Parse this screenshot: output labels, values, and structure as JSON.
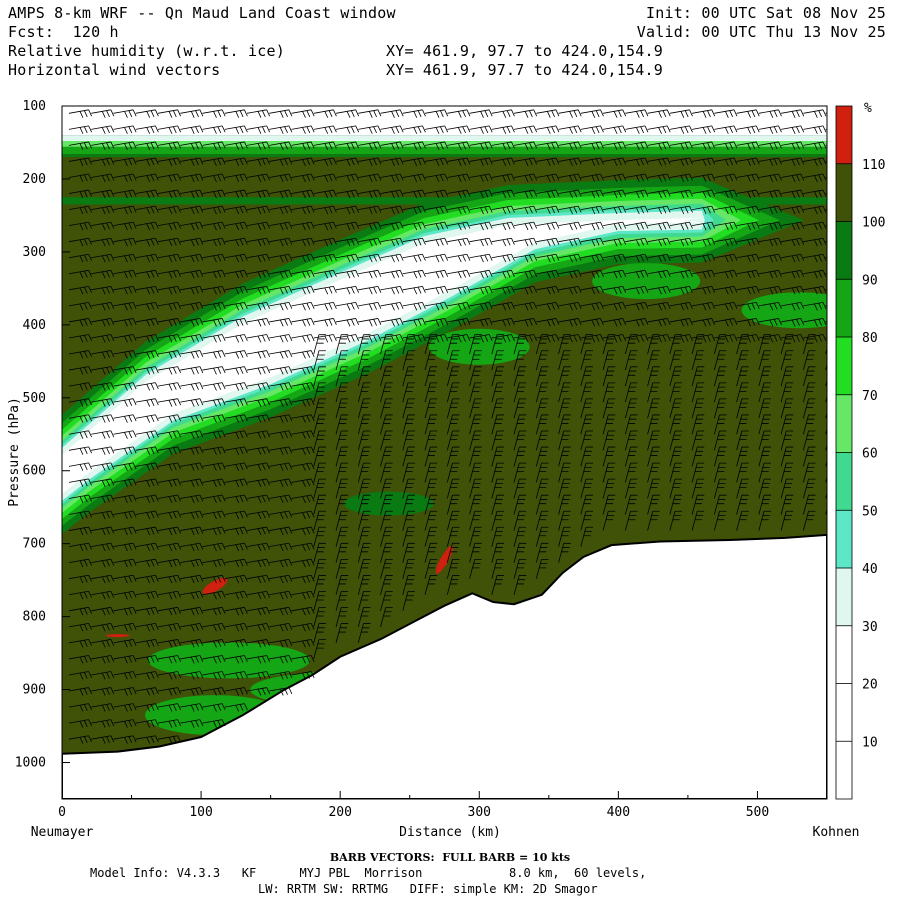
{
  "header": {
    "title": "AMPS 8-km WRF -- Qn Maud Land Coast window",
    "init": "Init: 00 UTC Sat 08 Nov 25",
    "fcst": "Fcst:  120 h",
    "valid": "Valid: 00 UTC Thu 13 Nov 25",
    "field1": "Relative humidity (w.r.t. ice)",
    "field1_xy": "XY= 461.9, 97.7 to 424.0,154.9",
    "field2": "Horizontal wind vectors",
    "field2_xy": "XY= 461.9, 97.7 to 424.0,154.9"
  },
  "footer": {
    "barb_note": "BARB VECTORS:  FULL BARB = 10 kts",
    "model_line1": "Model Info: V4.3.3   KF      MYJ PBL  Morrison            8.0 km,  60 levels,",
    "model_line2": "LW: RRTM SW: RRTMG   DIFF: simple KM: 2D Smagor"
  },
  "chart_data": {
    "type": "heatmap",
    "xlabel": "Distance (km)",
    "ylabel": "Pressure (hPa)",
    "x_ticks": [
      0,
      100,
      200,
      300,
      400,
      500
    ],
    "y_ticks": [
      100,
      200,
      300,
      400,
      500,
      600,
      700,
      800,
      900,
      1000
    ],
    "xlim": [
      0,
      550
    ],
    "ylim": [
      100,
      1050
    ],
    "y_inverted": true,
    "left_endpoint_label": "Neumayer",
    "right_endpoint_label": "Kohnen",
    "colorbar": {
      "unit": "%",
      "ticks": [
        10,
        20,
        30,
        40,
        50,
        60,
        70,
        80,
        90,
        100,
        110
      ],
      "bins": [
        {
          "from": 0,
          "to": 30,
          "color": "#ffffff"
        },
        {
          "from": 30,
          "to": 40,
          "color": "#dff7ef"
        },
        {
          "from": 40,
          "to": 50,
          "color": "#5ee7c7"
        },
        {
          "from": 50,
          "to": 60,
          "color": "#3fd98f"
        },
        {
          "from": 60,
          "to": 70,
          "color": "#66e866"
        },
        {
          "from": 70,
          "to": 80,
          "color": "#22dd22"
        },
        {
          "from": 80,
          "to": 90,
          "color": "#14a614"
        },
        {
          "from": 90,
          "to": 100,
          "color": "#0a7a12"
        },
        {
          "from": 100,
          "to": 110,
          "color": "#3f5208"
        },
        {
          "from": 110,
          "to": 120,
          "color": "#d02010"
        }
      ]
    },
    "terrain_surface": [
      {
        "x": 0,
        "p": 988
      },
      {
        "x": 40,
        "p": 985
      },
      {
        "x": 70,
        "p": 978
      },
      {
        "x": 100,
        "p": 965
      },
      {
        "x": 130,
        "p": 935
      },
      {
        "x": 160,
        "p": 900
      },
      {
        "x": 180,
        "p": 880
      },
      {
        "x": 200,
        "p": 855
      },
      {
        "x": 230,
        "p": 830
      },
      {
        "x": 255,
        "p": 805
      },
      {
        "x": 275,
        "p": 785
      },
      {
        "x": 295,
        "p": 768
      },
      {
        "x": 310,
        "p": 780
      },
      {
        "x": 325,
        "p": 783
      },
      {
        "x": 345,
        "p": 770
      },
      {
        "x": 360,
        "p": 740
      },
      {
        "x": 375,
        "p": 718
      },
      {
        "x": 395,
        "p": 702
      },
      {
        "x": 430,
        "p": 697
      },
      {
        "x": 480,
        "p": 695
      },
      {
        "x": 520,
        "p": 692
      },
      {
        "x": 550,
        "p": 688
      }
    ],
    "dry_layer": {
      "description_rh": "below 30",
      "upper_edge": [
        {
          "x": 0,
          "p": 570
        },
        {
          "x": 60,
          "p": 470
        },
        {
          "x": 130,
          "p": 390
        },
        {
          "x": 200,
          "p": 330
        },
        {
          "x": 260,
          "p": 280
        },
        {
          "x": 320,
          "p": 255
        },
        {
          "x": 400,
          "p": 248
        },
        {
          "x": 460,
          "p": 245
        }
      ],
      "lower_edge": [
        {
          "x": 460,
          "p": 268
        },
        {
          "x": 400,
          "p": 270
        },
        {
          "x": 340,
          "p": 295
        },
        {
          "x": 280,
          "p": 360
        },
        {
          "x": 220,
          "p": 420
        },
        {
          "x": 150,
          "p": 480
        },
        {
          "x": 80,
          "p": 530
        },
        {
          "x": 20,
          "p": 610
        },
        {
          "x": 0,
          "p": 640
        }
      ]
    },
    "upper_dry_layer": {
      "description_rh": "below 30",
      "p_range": [
        100,
        140
      ]
    },
    "moist_band_upper": {
      "description_rh": "100-110",
      "p_range": [
        170,
        225
      ]
    }
  }
}
